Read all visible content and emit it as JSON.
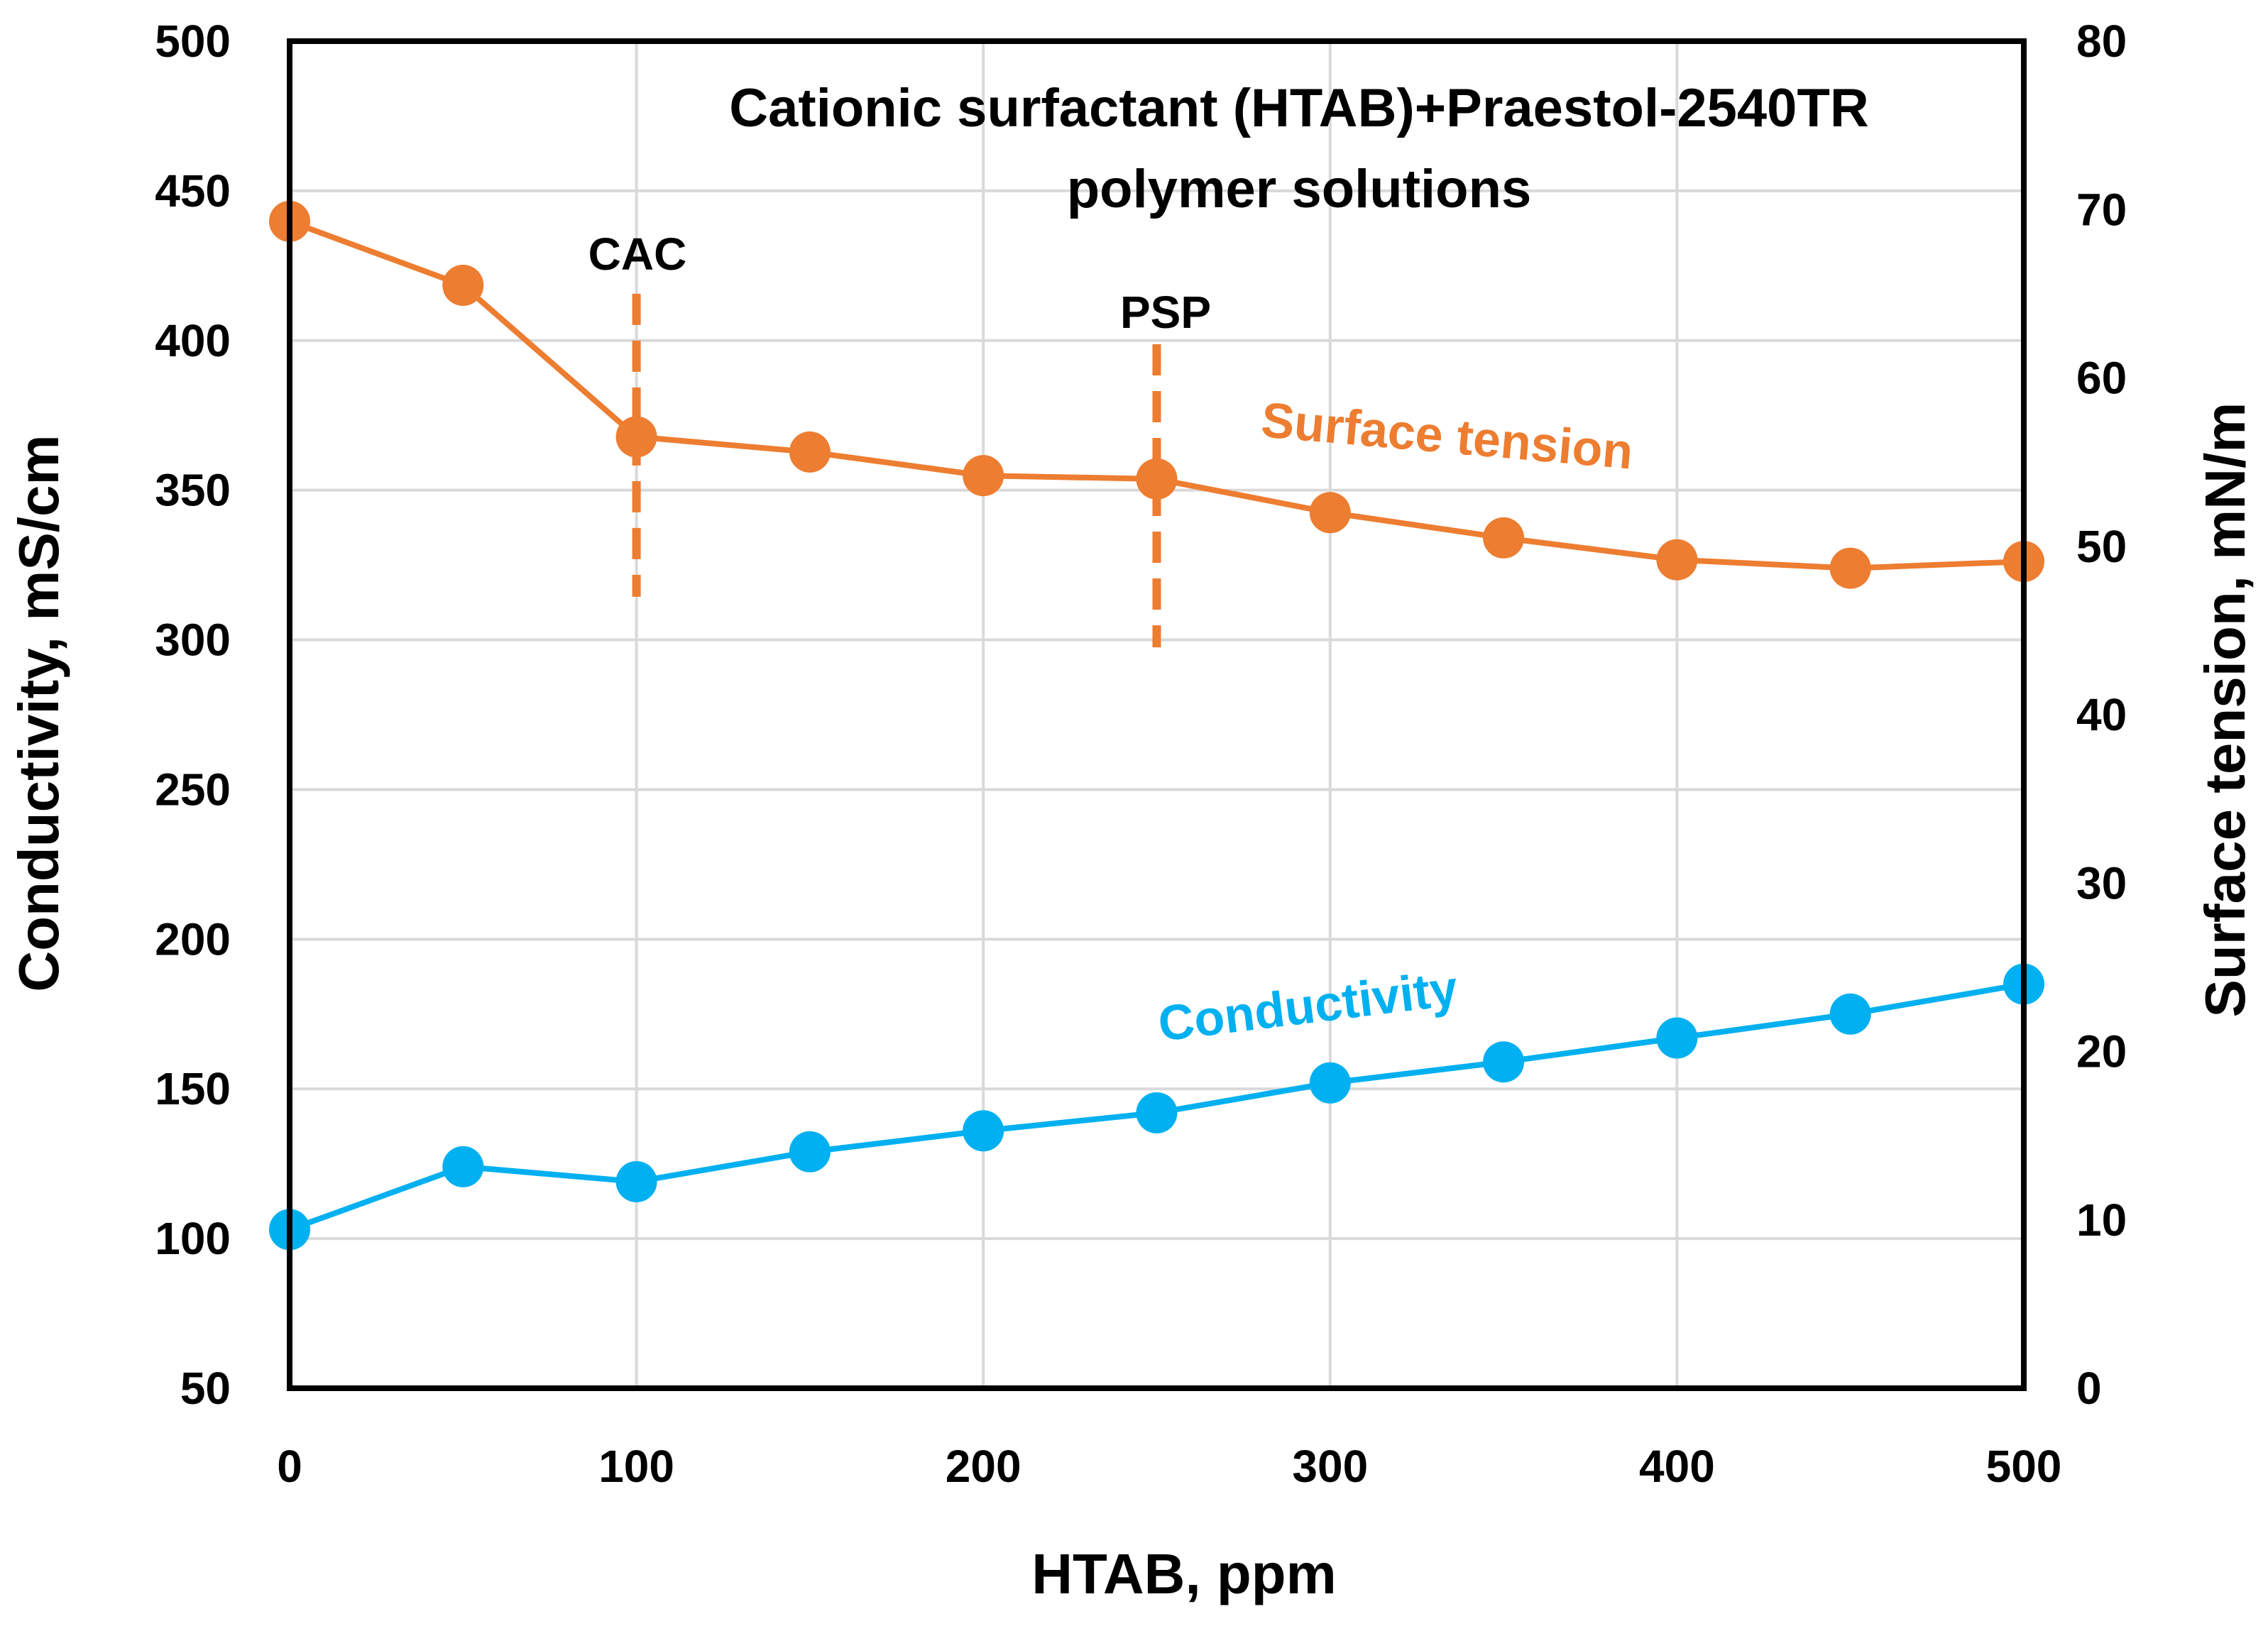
{
  "chart_data": {
    "type": "line",
    "title_line1": "Cationic surfactant (HTAB)+Praestol-2540TR",
    "title_line2": "polymer solutions",
    "xlabel": "HTAB, ppm",
    "ylabel_left": "Conductivity, mS/cm",
    "ylabel_right": "Surface tension, mN/m",
    "xlim": [
      0,
      500
    ],
    "ylim_left": [
      50,
      500
    ],
    "ylim_right": [
      0,
      80
    ],
    "x_ticks": [
      "0",
      "100",
      "200",
      "300",
      "400",
      "500"
    ],
    "y_left_ticks": [
      "50",
      "100",
      "150",
      "200",
      "250",
      "300",
      "350",
      "400",
      "450",
      "500"
    ],
    "y_right_ticks": [
      "0",
      "10",
      "20",
      "30",
      "40",
      "50",
      "60",
      "70",
      "80"
    ],
    "grid": true,
    "x": [
      0,
      50,
      100,
      150,
      200,
      250,
      300,
      350,
      400,
      450,
      500
    ],
    "series": [
      {
        "name": "Surface tension",
        "axis": "right",
        "color": "#ED7D31",
        "values": [
          69.3,
          65.5,
          56.5,
          55.6,
          54.2,
          54.0,
          52.0,
          50.5,
          49.2,
          48.7,
          49.1
        ]
      },
      {
        "name": "Conductivity",
        "axis": "left",
        "color": "#00B0F0",
        "values": [
          103,
          124,
          119,
          129,
          136,
          142,
          152,
          159,
          167,
          175,
          185
        ]
      }
    ],
    "annotations": [
      {
        "label": "CAC",
        "x": 100,
        "y_range": [
          47,
          65
        ],
        "color": "#ED7D31"
      },
      {
        "label": "PSP",
        "x": 250,
        "y_range": [
          44,
          62
        ],
        "color": "#ED7D31"
      }
    ]
  }
}
